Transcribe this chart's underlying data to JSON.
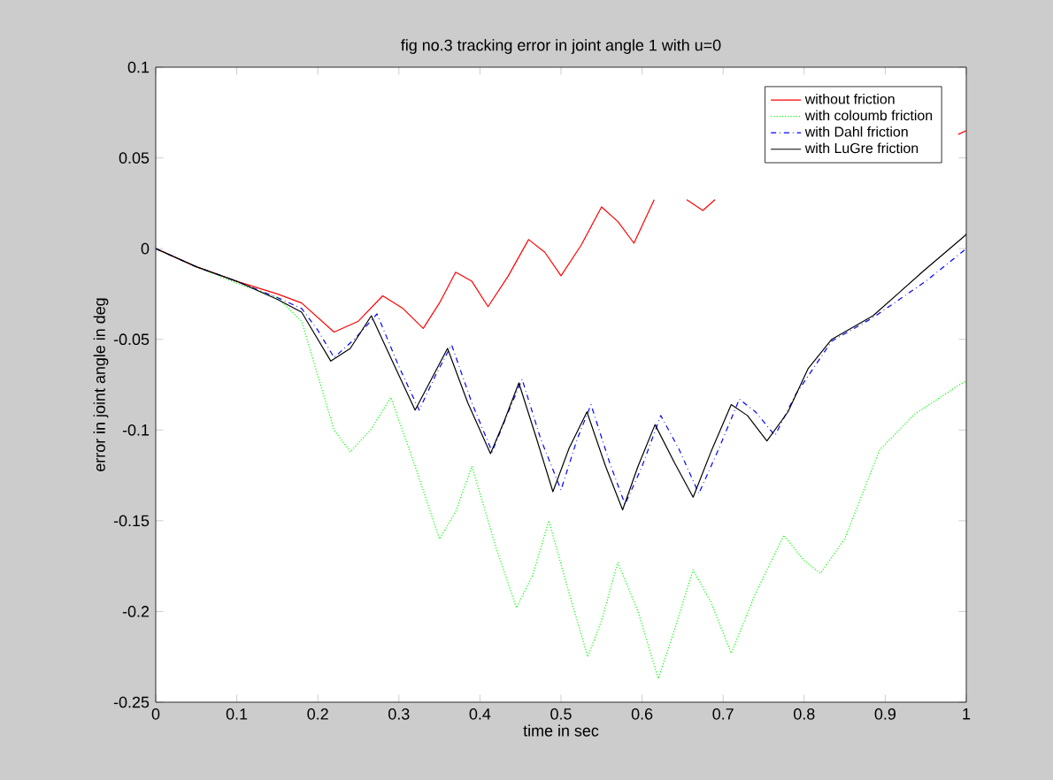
{
  "chart_data": {
    "type": "line",
    "title": "fig no.3 tracking error in joint angle 1 with  u=0",
    "xlabel": "time in sec",
    "ylabel": "error in joint angle in deg",
    "xlim": [
      0,
      1
    ],
    "ylim": [
      -0.25,
      0.1
    ],
    "xticks": [
      0,
      0.1,
      0.2,
      0.3,
      0.4,
      0.5,
      0.6,
      0.7,
      0.8,
      0.9,
      1
    ],
    "yticks": [
      -0.25,
      -0.2,
      -0.15,
      -0.1,
      -0.05,
      0,
      0.05,
      0.1
    ],
    "grid": false,
    "legend": "top right",
    "marker": "none",
    "series": [
      {
        "name": "without friction",
        "color": "#ff0000",
        "line_style": "solid",
        "x": [
          0,
          0.05,
          0.1,
          0.15,
          0.18,
          0.2,
          0.22,
          0.25,
          0.28,
          0.305,
          0.33,
          0.35,
          0.37,
          0.39,
          0.41,
          0.435,
          0.46,
          0.48,
          0.5,
          0.525,
          0.55,
          0.57,
          0.59,
          0.615,
          0.64,
          0.655,
          0.675,
          0.69,
          0.7,
          0.8,
          0.9,
          0.99,
          1
        ],
        "values": [
          0,
          -0.01,
          -0.018,
          -0.025,
          -0.03,
          -0.038,
          -0.046,
          -0.04,
          -0.026,
          -0.033,
          -0.044,
          -0.03,
          -0.013,
          -0.018,
          -0.032,
          -0.015,
          0.005,
          -0.002,
          -0.015,
          0.002,
          0.023,
          0.015,
          0.003,
          0.027,
          null,
          0.027,
          0.021,
          0.027,
          null,
          null,
          null,
          0.063,
          0.065
        ]
      },
      {
        "name": "with coloumb friction",
        "color": "#00ff00",
        "line_style": "dotted",
        "x": [
          0,
          0.05,
          0.1,
          0.15,
          0.18,
          0.2,
          0.22,
          0.24,
          0.265,
          0.29,
          0.32,
          0.35,
          0.37,
          0.39,
          0.42,
          0.445,
          0.465,
          0.485,
          0.51,
          0.533,
          0.55,
          0.57,
          0.595,
          0.62,
          0.64,
          0.663,
          0.685,
          0.71,
          0.74,
          0.775,
          0.8,
          0.82,
          0.85,
          0.893,
          0.937,
          0.995,
          1
        ],
        "values": [
          0,
          -0.01,
          -0.019,
          -0.027,
          -0.04,
          -0.07,
          -0.1,
          -0.112,
          -0.1,
          -0.082,
          -0.12,
          -0.16,
          -0.145,
          -0.12,
          -0.165,
          -0.198,
          -0.18,
          -0.15,
          -0.19,
          -0.225,
          -0.205,
          -0.173,
          -0.2,
          -0.237,
          -0.21,
          -0.177,
          -0.195,
          -0.223,
          -0.19,
          -0.158,
          -0.172,
          -0.179,
          -0.16,
          -0.111,
          -0.091,
          -0.074,
          -0.073
        ]
      },
      {
        "name": "with Dahl friction",
        "color": "#0000ff",
        "line_style": "dashdotted",
        "x": [
          0,
          0.05,
          0.1,
          0.15,
          0.18,
          0.2,
          0.22,
          0.245,
          0.273,
          0.3,
          0.325,
          0.345,
          0.365,
          0.39,
          0.415,
          0.435,
          0.452,
          0.475,
          0.5,
          0.52,
          0.537,
          0.56,
          0.579,
          0.6,
          0.623,
          0.645,
          0.67,
          0.695,
          0.72,
          0.74,
          0.764,
          0.79,
          0.834,
          0.885,
          0.95,
          1
        ],
        "values": [
          0,
          -0.01,
          -0.018,
          -0.027,
          -0.033,
          -0.045,
          -0.06,
          -0.05,
          -0.036,
          -0.065,
          -0.089,
          -0.07,
          -0.053,
          -0.085,
          -0.112,
          -0.09,
          -0.072,
          -0.105,
          -0.133,
          -0.105,
          -0.086,
          -0.118,
          -0.141,
          -0.12,
          -0.092,
          -0.11,
          -0.135,
          -0.11,
          -0.083,
          -0.09,
          -0.103,
          -0.08,
          -0.051,
          -0.038,
          -0.018,
          0
        ]
      },
      {
        "name": "with LuGre friction",
        "color": "#000000",
        "line_style": "solid",
        "x": [
          0,
          0.05,
          0.1,
          0.15,
          0.18,
          0.2,
          0.216,
          0.24,
          0.266,
          0.295,
          0.32,
          0.34,
          0.36,
          0.385,
          0.413,
          0.43,
          0.448,
          0.47,
          0.49,
          0.51,
          0.532,
          0.555,
          0.576,
          0.595,
          0.616,
          0.64,
          0.663,
          0.685,
          0.71,
          0.73,
          0.754,
          0.78,
          0.805,
          0.834,
          0.885,
          0.948,
          0.998,
          1
        ],
        "values": [
          0,
          -0.01,
          -0.018,
          -0.028,
          -0.035,
          -0.05,
          -0.062,
          -0.055,
          -0.037,
          -0.065,
          -0.089,
          -0.072,
          -0.055,
          -0.085,
          -0.113,
          -0.095,
          -0.074,
          -0.105,
          -0.134,
          -0.11,
          -0.09,
          -0.12,
          -0.144,
          -0.12,
          -0.097,
          -0.118,
          -0.137,
          -0.112,
          -0.086,
          -0.092,
          -0.106,
          -0.09,
          -0.066,
          -0.05,
          -0.037,
          -0.012,
          0.007,
          0.008
        ]
      }
    ]
  }
}
